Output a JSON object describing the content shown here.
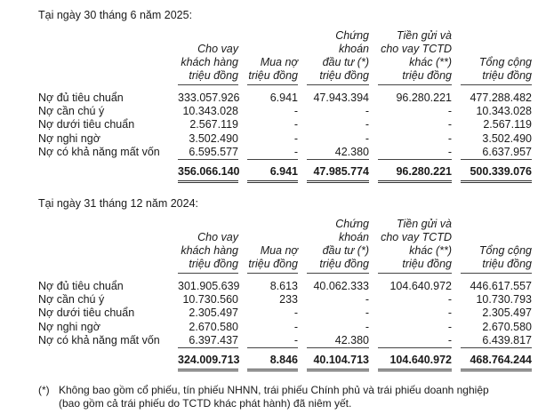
{
  "columns": [
    [
      "Cho vay",
      "khách hàng",
      "triệu đồng"
    ],
    [
      "Mua nợ",
      "triệu đồng"
    ],
    [
      "Chứng",
      "khoán",
      "đầu tư (*)",
      "triệu đồng"
    ],
    [
      "Tiền gửi và",
      "cho vay TCTD",
      "khác (**)",
      "triệu đồng"
    ],
    [
      "Tổng cộng",
      "triệu đồng"
    ]
  ],
  "sections": [
    {
      "title": "Tại ngày 30 tháng 6 năm 2025:",
      "rows": [
        {
          "label": "Nợ đủ tiêu chuẩn",
          "values": [
            "333.057.926",
            "6.941",
            "47.943.394",
            "96.280.221",
            "477.288.482"
          ]
        },
        {
          "label": "Nợ cần chú ý",
          "values": [
            "10.343.028",
            "-",
            "-",
            "-",
            "10.343.028"
          ]
        },
        {
          "label": "Nợ dưới tiêu chuẩn",
          "values": [
            "2.567.119",
            "-",
            "-",
            "-",
            "2.567.119"
          ]
        },
        {
          "label": "Nợ nghi ngờ",
          "values": [
            "3.502.490",
            "-",
            "-",
            "-",
            "3.502.490"
          ]
        },
        {
          "label": "Nợ có khả năng mất vốn",
          "values": [
            "6.595.577",
            "-",
            "42.380",
            "-",
            "6.637.957"
          ]
        }
      ],
      "totals": [
        "356.066.140",
        "6.941",
        "47.985.774",
        "96.280.221",
        "500.339.076"
      ]
    },
    {
      "title": "Tại ngày 31 tháng 12 năm 2024:",
      "rows": [
        {
          "label": "Nợ đủ tiêu chuẩn",
          "values": [
            "301.905.639",
            "8.613",
            "40.062.333",
            "104.640.972",
            "446.617.557"
          ]
        },
        {
          "label": "Nợ cần chú ý",
          "values": [
            "10.730.560",
            "233",
            "-",
            "-",
            "10.730.793"
          ]
        },
        {
          "label": "Nợ dưới tiêu chuẩn",
          "values": [
            "2.305.497",
            "-",
            "-",
            "-",
            "2.305.497"
          ]
        },
        {
          "label": "Nợ nghi ngờ",
          "values": [
            "2.670.580",
            "-",
            "-",
            "-",
            "2.670.580"
          ]
        },
        {
          "label": "Nợ có khả năng mất vốn",
          "values": [
            "6.397.437",
            "-",
            "42.380",
            "-",
            "6.439.817"
          ]
        }
      ],
      "totals": [
        "324.009.713",
        "8.846",
        "40.104.713",
        "104.640.972",
        "468.764.244"
      ]
    }
  ],
  "footnote": {
    "marker": "(*)",
    "lines": [
      "Không bao gồm cổ phiếu, tín phiếu NHNN, trái phiếu Chính phủ và trái phiếu doanh nghiệp",
      "(bao gồm cả trái phiếu do TCTD khác phát hành) đã niêm yết."
    ]
  }
}
